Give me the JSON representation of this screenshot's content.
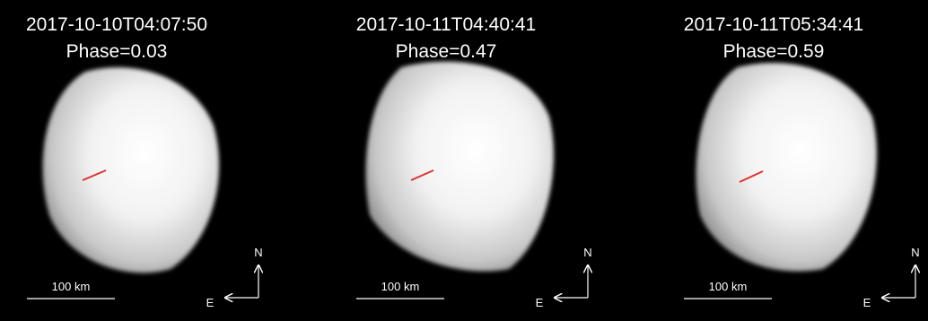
{
  "panels": [
    {
      "timestamp": "2017-10-10T04:07:50",
      "phase": "Phase=0.03",
      "scale": "100 km",
      "north": "N",
      "east": "E"
    },
    {
      "timestamp": "2017-10-11T04:40:41",
      "phase": "Phase=0.47",
      "scale": "100 km",
      "north": "N",
      "east": "E"
    },
    {
      "timestamp": "2017-10-11T05:34:41",
      "phase": "Phase=0.59",
      "scale": "100 km",
      "north": "N",
      "east": "E"
    }
  ]
}
